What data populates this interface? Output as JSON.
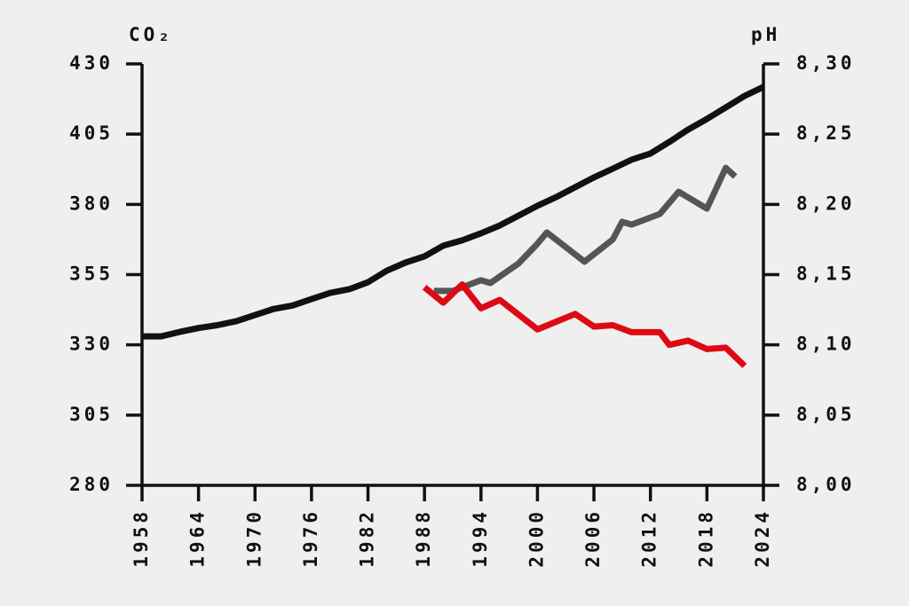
{
  "chart_data": {
    "type": "line",
    "y_label": "CO₂",
    "y2_label": "pH",
    "xlim": [
      1958,
      2024
    ],
    "xticks": [
      1958,
      1964,
      1970,
      1976,
      1982,
      1988,
      1994,
      2000,
      2006,
      2012,
      2018,
      2024
    ],
    "ylim": [
      280,
      430
    ],
    "yticks": [
      280,
      305,
      330,
      355,
      380,
      405,
      430
    ],
    "y2lim": [
      8.0,
      8.3
    ],
    "y2ticks": [
      {
        "value": 8.0,
        "label": "8,00"
      },
      {
        "value": 8.05,
        "label": "8,05"
      },
      {
        "value": 8.1,
        "label": "8,10"
      },
      {
        "value": 8.15,
        "label": "8,15"
      },
      {
        "value": 8.2,
        "label": "8,20"
      },
      {
        "value": 8.25,
        "label": "8,25"
      },
      {
        "value": 8.3,
        "label": "8,30"
      }
    ],
    "series": [
      {
        "color": "#111111",
        "axis": "y",
        "x": [
          1958,
          1960,
          1962,
          1964,
          1966,
          1968,
          1970,
          1972,
          1974,
          1976,
          1978,
          1980,
          1982,
          1984,
          1986,
          1988,
          1990,
          1992,
          1994,
          1996,
          1998,
          2000,
          2002,
          2004,
          2006,
          2008,
          2010,
          2012,
          2014,
          2016,
          2018,
          2020,
          2022,
          2024
        ],
        "values": [
          333,
          333,
          334.6,
          336,
          337,
          338.4,
          340.6,
          342.8,
          344,
          346.3,
          348.5,
          349.8,
          352.3,
          356.4,
          359.3,
          361.5,
          365.3,
          367.2,
          369.7,
          372.5,
          376,
          379.5,
          382.6,
          386.1,
          389.6,
          392.7,
          395.9,
          398.1,
          402.2,
          406.6,
          410.4,
          414.5,
          418.6,
          421.8
        ]
      },
      {
        "color": "#555555",
        "axis": "y",
        "x": [
          1989,
          1990,
          1991,
          1994,
          1995,
          1998,
          2000,
          2001,
          2005,
          2008,
          2009,
          2010,
          2013,
          2015,
          2018,
          2020,
          2021
        ],
        "values": [
          349.2,
          349.2,
          349.2,
          353,
          352,
          359,
          366,
          370,
          359.6,
          367.5,
          373.8,
          372.8,
          376.6,
          384.5,
          378.5,
          393,
          389.9
        ]
      },
      {
        "color": "#dd0a14",
        "axis": "y2",
        "x": [
          1988,
          1990,
          1992,
          1994,
          1996,
          2000,
          2004,
          2006,
          2008,
          2010,
          2013,
          2014,
          2016,
          2018,
          2020,
          2022
        ],
        "values": [
          8.141,
          8.13,
          8.143,
          8.126,
          8.132,
          8.111,
          8.122,
          8.113,
          8.114,
          8.109,
          8.109,
          8.1,
          8.103,
          8.097,
          8.098,
          8.085
        ]
      }
    ]
  }
}
